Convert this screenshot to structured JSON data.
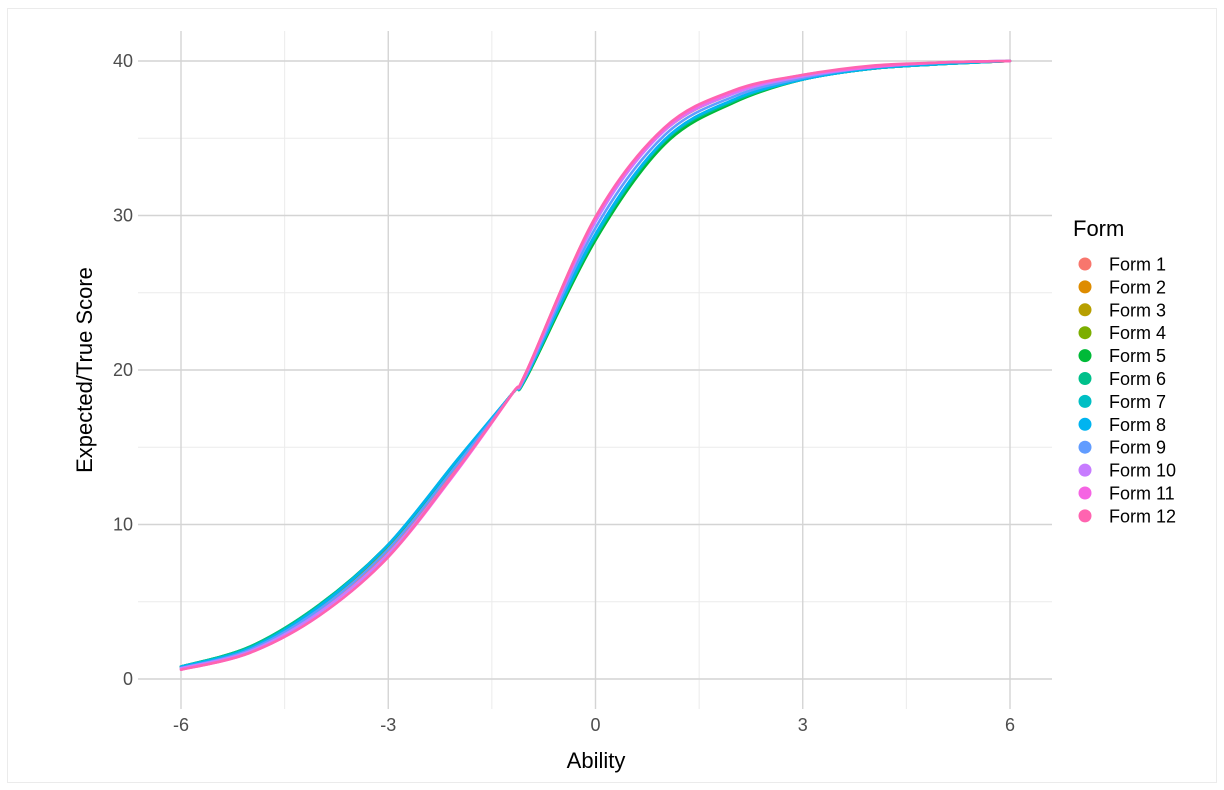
{
  "chart_data": {
    "type": "line",
    "xlabel": "Ability",
    "ylabel": "Expected/True Score",
    "xlim": [
      -6,
      6
    ],
    "ylim": [
      0,
      40
    ],
    "xticks": [
      -6,
      -3,
      0,
      3,
      6
    ],
    "yticks": [
      0,
      10,
      20,
      30,
      40
    ],
    "x": [
      -6,
      -5,
      -4,
      -3,
      -2,
      -1.2,
      -1,
      0,
      1,
      2,
      3,
      4,
      5,
      6
    ],
    "grid": true,
    "legend_title": "Form",
    "legend_position": "right",
    "series": [
      {
        "name": "Form 1",
        "color": "#F8766D",
        "values": [
          0.7,
          1.9,
          4.4,
          8.3,
          13.7,
          18.5,
          19.9,
          29.9,
          35.5,
          37.9,
          39.0,
          39.6,
          39.9,
          40.0
        ]
      },
      {
        "name": "Form 2",
        "color": "#DE8C00",
        "values": [
          0.8,
          2.0,
          4.6,
          8.6,
          14.0,
          18.5,
          19.6,
          28.7,
          34.8,
          37.4,
          38.8,
          39.5,
          39.8,
          40.0
        ]
      },
      {
        "name": "Form 3",
        "color": "#B79F00",
        "values": [
          0.8,
          2.0,
          4.7,
          8.6,
          14.1,
          18.5,
          19.6,
          28.6,
          34.7,
          37.4,
          38.8,
          39.5,
          39.8,
          40.0
        ]
      },
      {
        "name": "Form 4",
        "color": "#7CAE00",
        "values": [
          0.8,
          2.0,
          4.7,
          8.6,
          14.1,
          18.5,
          19.6,
          28.5,
          34.7,
          37.4,
          38.8,
          39.5,
          39.8,
          40.0
        ]
      },
      {
        "name": "Form 5",
        "color": "#00BA38",
        "values": [
          0.8,
          2.1,
          4.8,
          8.7,
          14.1,
          18.5,
          19.5,
          28.4,
          34.6,
          37.3,
          38.8,
          39.5,
          39.8,
          40.0
        ]
      },
      {
        "name": "Form 6",
        "color": "#00C08B",
        "values": [
          0.8,
          2.1,
          4.8,
          8.7,
          14.1,
          18.5,
          19.6,
          28.6,
          34.8,
          37.4,
          38.8,
          39.5,
          39.8,
          40.0
        ]
      },
      {
        "name": "Form 7",
        "color": "#00BFC4",
        "values": [
          0.8,
          2.0,
          4.7,
          8.7,
          14.2,
          18.5,
          19.6,
          28.7,
          34.9,
          37.5,
          38.8,
          39.5,
          39.8,
          40.0
        ]
      },
      {
        "name": "Form 8",
        "color": "#00B4F0",
        "values": [
          0.8,
          2.0,
          4.7,
          8.7,
          14.2,
          18.5,
          19.6,
          28.8,
          34.9,
          37.5,
          38.8,
          39.5,
          39.8,
          40.0
        ]
      },
      {
        "name": "Form 9",
        "color": "#619CFF",
        "values": [
          0.7,
          1.9,
          4.5,
          8.4,
          13.9,
          18.5,
          19.7,
          29.2,
          35.2,
          37.7,
          38.9,
          39.6,
          39.9,
          40.0
        ]
      },
      {
        "name": "Form 10",
        "color": "#C77CFF",
        "values": [
          0.7,
          1.8,
          4.3,
          8.1,
          13.6,
          18.5,
          19.8,
          29.6,
          35.5,
          37.9,
          39.0,
          39.6,
          39.9,
          40.0
        ]
      },
      {
        "name": "Form 11",
        "color": "#F564E3",
        "values": [
          0.6,
          1.7,
          4.1,
          7.9,
          13.5,
          18.5,
          19.9,
          29.8,
          35.6,
          38.0,
          39.1,
          39.6,
          39.9,
          40.0
        ]
      },
      {
        "name": "Form 12",
        "color": "#FF64B0",
        "values": [
          0.6,
          1.7,
          4.1,
          7.9,
          13.6,
          18.5,
          19.9,
          29.9,
          35.7,
          38.1,
          39.1,
          39.7,
          39.9,
          40.0
        ]
      }
    ]
  }
}
